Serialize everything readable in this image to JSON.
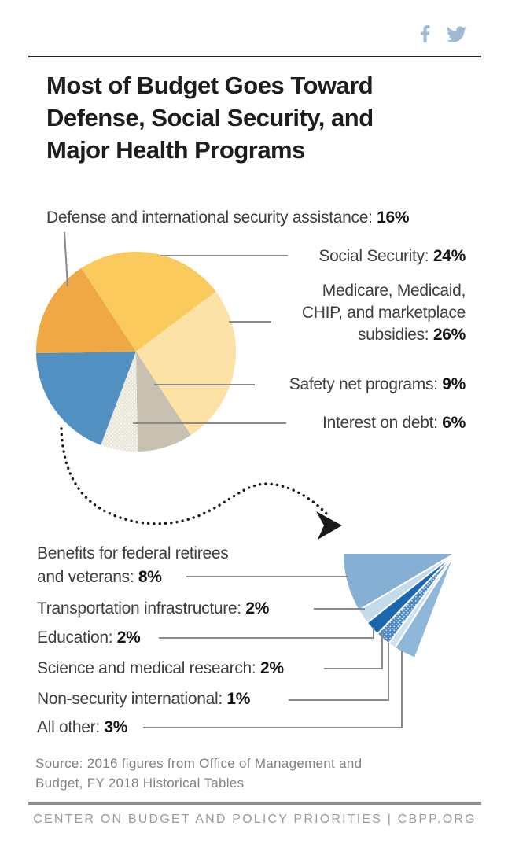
{
  "header": {
    "icon_color": "#9fbad3",
    "share": {
      "facebook_label": "facebook-share",
      "twitter_label": "twitter-share"
    },
    "title_lines": [
      "Most of Budget Goes Toward",
      "Defense, Social Security, and",
      "Major Health Programs"
    ]
  },
  "chart_data": {
    "type": "pie",
    "title": "Most of Budget Goes Toward Defense, Social Security, and Major Health Programs",
    "unit": "percent of federal budget",
    "main_pie": {
      "start_angle_deg": -33.3,
      "slices": [
        {
          "key": "social-security",
          "label": "Social Security",
          "value": 24,
          "color": "#FBCA5C"
        },
        {
          "key": "medicare-medicaid-chip",
          "label": "Medicare, Medicaid, CHIP, and marketplace subsidies",
          "value": 26,
          "color": "#FDE2A7"
        },
        {
          "key": "safety-net-programs",
          "label": "Safety net programs",
          "value": 9,
          "color": "#C8C0B0"
        },
        {
          "key": "interest-on-debt",
          "label": "Interest on debt",
          "value": 6,
          "color": "#E9E6DC",
          "speckle": true,
          "speckle_color": "#FDFCF8"
        },
        {
          "key": "all-other-combined",
          "label": "All other (detailed in fan below)",
          "value": 19,
          "color": "#5290C1"
        },
        {
          "key": "defense-international-security",
          "label": "Defense and international security assistance",
          "value": 16,
          "color": "#EFA843"
        }
      ]
    },
    "detail_fan": {
      "start_angle_deg": 201,
      "span_deg": 69,
      "slices": [
        {
          "key": "all-other",
          "label": "All other",
          "value": 3,
          "color": "#8FB7DA"
        },
        {
          "key": "non-security-international",
          "label": "Non-security international",
          "value": 1,
          "color": "#CFE0F0"
        },
        {
          "key": "science-medical-research",
          "label": "Science and medical research",
          "value": 2,
          "color": "#4D8BC2",
          "speckle": true,
          "speckle_color": "#D3E4F3"
        },
        {
          "key": "education",
          "label": "Education",
          "value": 2,
          "color": "#1B67AE"
        },
        {
          "key": "transportation-infrastructure",
          "label": "Transportation infrastructure",
          "value": 2,
          "color": "#C5DAEC"
        },
        {
          "key": "benefits-retirees-veterans",
          "label": "Benefits for federal retirees and veterans",
          "value": 8,
          "color": "#86AFD4"
        }
      ]
    }
  },
  "labels": {
    "defense": {
      "lines": [
        "Defense and international security assistance: "
      ],
      "value": "16%"
    },
    "social_security": {
      "lines": [
        "Social Security: "
      ],
      "value": "24%"
    },
    "medicare": {
      "lines": [
        "Medicare, Medicaid,",
        "CHIP, and marketplace",
        "subsidies: "
      ],
      "value": "26%"
    },
    "safety_net": {
      "lines": [
        "Safety net programs: "
      ],
      "value": "9%"
    },
    "interest": {
      "lines": [
        "Interest on debt: "
      ],
      "value": "6%"
    },
    "benefits": {
      "lines": [
        "Benefits for federal retirees",
        "and veterans: "
      ],
      "value": "8%"
    },
    "transportation": {
      "lines": [
        "Transportation infrastructure: "
      ],
      "value": "2%"
    },
    "education": {
      "lines": [
        "Education: "
      ],
      "value": "2%"
    },
    "science": {
      "lines": [
        "Science and medical research: "
      ],
      "value": "2%"
    },
    "non_security": {
      "lines": [
        "Non-security international: "
      ],
      "value": "1%"
    },
    "all_other": {
      "lines": [
        "All other: "
      ],
      "value": "3%"
    }
  },
  "footer": {
    "source_lines": [
      "Source: 2016 figures from Office of Management and",
      "Budget, FY 2018 Historical Tables"
    ],
    "brand": "CENTER ON BUDGET AND POLICY PRIORITIES | CBPP.ORG"
  },
  "colors": {
    "leader": "#8a8a8a",
    "arrow": "#1a1a1a",
    "text": "#3e3e3e",
    "value_text": "#141414",
    "title": "#1d1d1d",
    "source": "#828282",
    "brand": "#9b9b9b",
    "rule_top": "#222222",
    "rule_bottom": "#8f8f8f"
  }
}
